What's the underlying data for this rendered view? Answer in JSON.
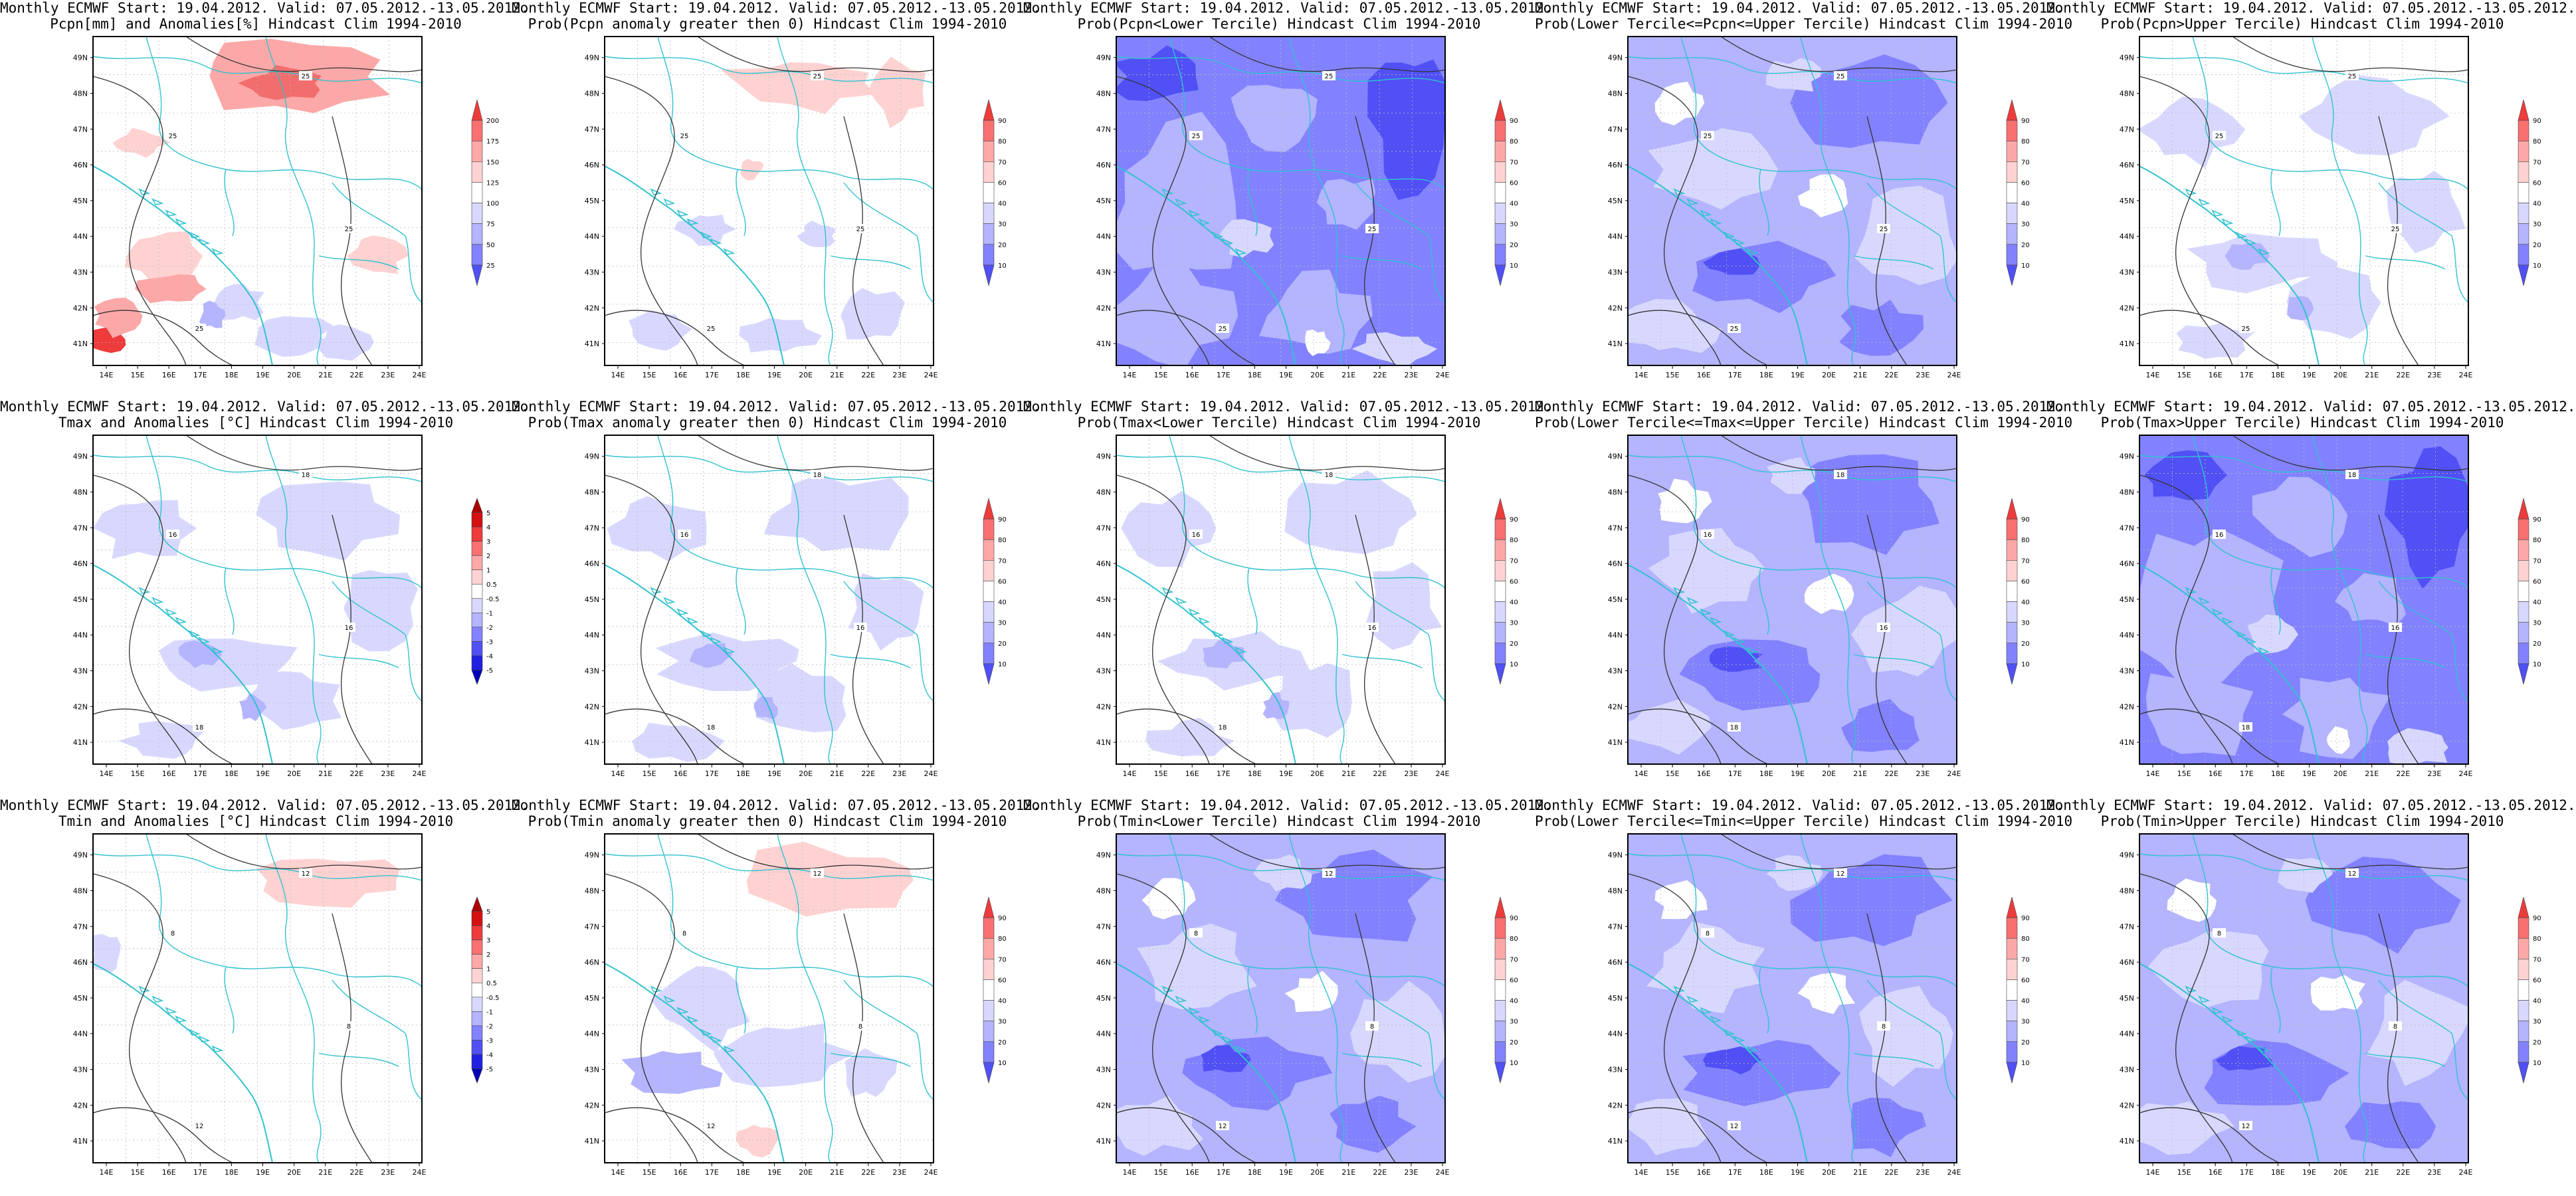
{
  "lat_labels": [
    "41N",
    "42N",
    "43N",
    "44N",
    "45N",
    "46N",
    "47N",
    "48N",
    "49N"
  ],
  "lon_labels": [
    "14E",
    "15E",
    "16E",
    "17E",
    "18E",
    "19E",
    "20E",
    "21E",
    "22E",
    "23E",
    "24E"
  ],
  "colors": {
    "positive": [
      "#ffd2d2",
      "#fda8a8",
      "#f87070",
      "#ee3b3b",
      "#d41010",
      "#aa0000",
      "#800000"
    ],
    "negative": [
      "#d8d8ff",
      "#b4b4ff",
      "#8282ff",
      "#5050f5",
      "#2020e0",
      "#0000b8",
      "#000090"
    ],
    "coast": "#31c2cf",
    "contour": "#333333"
  },
  "panels": [
    {
      "title1": "Monthly ECMWF Start: 19.04.2012. Valid: 07.05.2012.-13.05.2012.",
      "title2": "Pcpn[mm] and Anomalies[%] Hindcast Clim 1994-2010",
      "legend": [
        "25",
        "50",
        "75",
        "100",
        "125",
        "150",
        "175",
        "200"
      ],
      "scheme": "pcpn",
      "iso": [
        "25"
      ]
    },
    {
      "title1": "Monthly ECMWF Start: 19.04.2012. Valid: 07.05.2012.-13.05.2012.",
      "title2": "Prob(Pcpn anomaly greater then 0) Hindcast Clim 1994-2010",
      "legend": [
        "10",
        "20",
        "30",
        "40",
        "60",
        "70",
        "80",
        "90"
      ],
      "scheme": "pcpn_pos",
      "iso": [
        "25"
      ]
    },
    {
      "title1": "Monthly ECMWF Start: 19.04.2012. Valid: 07.05.2012.-13.05.2012.",
      "title2": "Prob(Pcpn<Lower Tercile) Hindcast Clim 1994-2010",
      "legend": [
        "10",
        "20",
        "30",
        "40",
        "60",
        "70",
        "80",
        "90"
      ],
      "scheme": "blue_heavy",
      "iso": [
        "25"
      ]
    },
    {
      "title1": "Monthly ECMWF Start: 19.04.2012. Valid: 07.05.2012.-13.05.2012.",
      "title2": "Prob(Lower Tercile<=Pcpn<=Upper Tercile) Hindcast Clim 1994-2010",
      "legend": [
        "10",
        "20",
        "30",
        "40",
        "60",
        "70",
        "80",
        "90"
      ],
      "scheme": "blue_mid",
      "iso": [
        "25"
      ]
    },
    {
      "title1": "Monthly ECMWF Start: 19.04.2012. Valid: 07.05.2012.-13.05.2012.",
      "title2": "Prob(Pcpn>Upper Tercile) Hindcast Clim 1994-2010",
      "legend": [
        "10",
        "20",
        "30",
        "40",
        "60",
        "70",
        "80",
        "90"
      ],
      "scheme": "light",
      "iso": [
        "25"
      ]
    },
    {
      "title1": "Monthly ECMWF Start: 19.04.2012. Valid: 07.05.2012.-13.05.2012.",
      "title2": "Tmax and Anomalies [°C] Hindcast Clim 1994-2010",
      "legend": [
        "-5",
        "-4",
        "-3",
        "-2",
        "-1",
        "-0.5",
        "0.5",
        "1",
        "2",
        "3",
        "4",
        "5"
      ],
      "scheme": "light",
      "iso": [
        "16",
        "18"
      ]
    },
    {
      "title1": "Monthly ECMWF Start: 19.04.2012. Valid: 07.05.2012.-13.05.2012.",
      "title2": "Prob(Tmax anomaly greater then 0) Hindcast Clim 1994-2010",
      "legend": [
        "10",
        "20",
        "30",
        "40",
        "60",
        "70",
        "80",
        "90"
      ],
      "scheme": "light",
      "iso": [
        "16",
        "18"
      ]
    },
    {
      "title1": "Monthly ECMWF Start: 19.04.2012. Valid: 07.05.2012.-13.05.2012.",
      "title2": "Prob(Tmax<Lower Tercile) Hindcast Clim 1994-2010",
      "legend": [
        "10",
        "20",
        "30",
        "40",
        "60",
        "70",
        "80",
        "90"
      ],
      "scheme": "light",
      "iso": [
        "16",
        "18"
      ]
    },
    {
      "title1": "Monthly ECMWF Start: 19.04.2012. Valid: 07.05.2012.-13.05.2012.",
      "title2": "Prob(Lower Tercile<=Tmax<=Upper Tercile) Hindcast Clim 1994-2010",
      "legend": [
        "10",
        "20",
        "30",
        "40",
        "60",
        "70",
        "80",
        "90"
      ],
      "scheme": "blue_mid",
      "iso": [
        "16",
        "18"
      ]
    },
    {
      "title1": "Monthly ECMWF Start: 19.04.2012. Valid: 07.05.2012.-13.05.2012.",
      "title2": "Prob(Tmax>Upper Tercile) Hindcast Clim 1994-2010",
      "legend": [
        "10",
        "20",
        "30",
        "40",
        "60",
        "70",
        "80",
        "90"
      ],
      "scheme": "blue_heavy",
      "iso": [
        "16",
        "18"
      ]
    },
    {
      "title1": "Monthly ECMWF Start: 19.04.2012. Valid: 07.05.2012.-13.05.2012.",
      "title2": "Tmin and Anomalies [°C] Hindcast Clim 1994-2010",
      "legend": [
        "-5",
        "-4",
        "-3",
        "-2",
        "-1",
        "-0.5",
        "0.5",
        "1",
        "2",
        "3",
        "4",
        "5"
      ],
      "scheme": "tmin_anom",
      "iso": [
        "8",
        "12"
      ]
    },
    {
      "title1": "Monthly ECMWF Start: 19.04.2012. Valid: 07.05.2012.-13.05.2012.",
      "title2": "Prob(Tmin anomaly greater then 0) Hindcast Clim 1994-2010",
      "legend": [
        "10",
        "20",
        "30",
        "40",
        "60",
        "70",
        "80",
        "90"
      ],
      "scheme": "tmin_pos",
      "iso": [
        "8",
        "12"
      ]
    },
    {
      "title1": "Monthly ECMWF Start: 19.04.2012. Valid: 07.05.2012.-13.05.2012.",
      "title2": "Prob(Tmin<Lower Tercile) Hindcast Clim 1994-2010",
      "legend": [
        "10",
        "20",
        "30",
        "40",
        "60",
        "70",
        "80",
        "90"
      ],
      "scheme": "blue_mid",
      "iso": [
        "8",
        "12"
      ]
    },
    {
      "title1": "Monthly ECMWF Start: 19.04.2012. Valid: 07.05.2012.-13.05.2012.",
      "title2": "Prob(Lower Tercile<=Tmin<=Upper Tercile) Hindcast Clim 1994-2010",
      "legend": [
        "10",
        "20",
        "30",
        "40",
        "60",
        "70",
        "80",
        "90"
      ],
      "scheme": "blue_mid",
      "iso": [
        "8",
        "12"
      ]
    },
    {
      "title1": "Monthly ECMWF Start: 19.04.2012. Valid: 07.05.2012.-13.05.2012.",
      "title2": "Prob(Tmin>Upper Tercile) Hindcast Clim 1994-2010",
      "legend": [
        "10",
        "20",
        "30",
        "40",
        "60",
        "70",
        "80",
        "90"
      ],
      "scheme": "blue_mid",
      "iso": [
        "8",
        "12"
      ]
    }
  ]
}
